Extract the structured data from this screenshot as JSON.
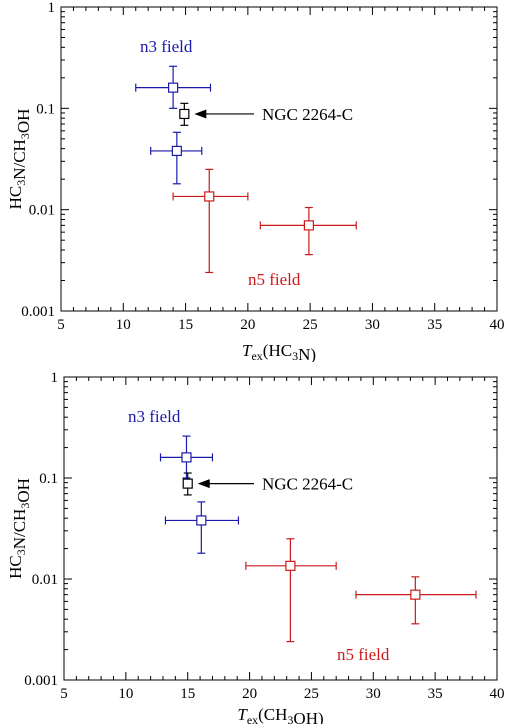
{
  "chart_data": [
    {
      "type": "scatter",
      "ylabel": "HC3N/CH3OH",
      "xlabel_base": "T",
      "xlabel_sub": "ex",
      "xlabel_rest": "(HC3N)",
      "xlim": [
        5,
        40
      ],
      "ylim": [
        0.001,
        1
      ],
      "yscale": "log",
      "x_ticks": [
        "5",
        "10",
        "15",
        "20",
        "25",
        "30",
        "35",
        "40"
      ],
      "y_ticks": [
        "0.001",
        "0.01",
        "0.1",
        "1"
      ],
      "annotations": {
        "n3": "n3 field",
        "n5": "n5 field",
        "ngc": "NGC 2264-C"
      },
      "colors": {
        "n3": "#1a1aaa",
        "n5": "#cc1a1a",
        "ngc": "#000000"
      },
      "series": [
        {
          "group": "n3",
          "points": [
            {
              "x": 14.0,
              "xlo": 11.0,
              "xhi": 17.0,
              "y": 0.16,
              "ylo": 0.1,
              "yhi": 0.26
            },
            {
              "x": 14.3,
              "xlo": 12.2,
              "xhi": 16.3,
              "y": 0.038,
              "ylo": 0.018,
              "yhi": 0.058
            }
          ]
        },
        {
          "group": "n5",
          "points": [
            {
              "x": 16.9,
              "xlo": 14.0,
              "xhi": 20.0,
              "y": 0.0135,
              "ylo": 0.0024,
              "yhi": 0.025
            },
            {
              "x": 24.9,
              "xlo": 21.0,
              "xhi": 28.7,
              "y": 0.007,
              "ylo": 0.0036,
              "yhi": 0.0105
            }
          ]
        },
        {
          "group": "ngc",
          "points": [
            {
              "x": 14.9,
              "xlo": 14.9,
              "xhi": 14.9,
              "y": 0.088,
              "ylo": 0.068,
              "yhi": 0.112
            }
          ]
        }
      ]
    },
    {
      "type": "scatter",
      "ylabel": "HC3N/CH3OH",
      "xlabel_base": "T",
      "xlabel_sub": "ex",
      "xlabel_rest": "(CH3OH)",
      "xlim": [
        5,
        40
      ],
      "ylim": [
        0.001,
        1
      ],
      "yscale": "log",
      "x_ticks": [
        "5",
        "10",
        "15",
        "20",
        "25",
        "30",
        "35",
        "40"
      ],
      "y_ticks": [
        "0.001",
        "0.01",
        "0.1",
        "1"
      ],
      "annotations": {
        "n3": "n3 field",
        "n5": "n5 field",
        "ngc": "NGC 2264-C"
      },
      "colors": {
        "n3": "#1a1aaa",
        "n5": "#cc1a1a",
        "ngc": "#000000"
      },
      "series": [
        {
          "group": "n3",
          "points": [
            {
              "x": 14.9,
              "xlo": 12.8,
              "xhi": 17.0,
              "y": 0.16,
              "ylo": 0.1,
              "yhi": 0.26
            },
            {
              "x": 16.1,
              "xlo": 13.2,
              "xhi": 19.1,
              "y": 0.038,
              "ylo": 0.018,
              "yhi": 0.058
            }
          ]
        },
        {
          "group": "n5",
          "points": [
            {
              "x": 23.3,
              "xlo": 19.7,
              "xhi": 27.0,
              "y": 0.0135,
              "ylo": 0.0024,
              "yhi": 0.025
            },
            {
              "x": 33.4,
              "xlo": 28.6,
              "xhi": 38.3,
              "y": 0.007,
              "ylo": 0.0036,
              "yhi": 0.0105
            }
          ]
        },
        {
          "group": "ngc",
          "points": [
            {
              "x": 15.0,
              "xlo": 15.0,
              "xhi": 15.0,
              "y": 0.088,
              "ylo": 0.068,
              "yhi": 0.112
            }
          ]
        }
      ]
    }
  ]
}
